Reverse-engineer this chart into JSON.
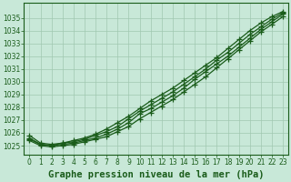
{
  "title": "Graphe pression niveau de la mer (hPa)",
  "xlabel_hours": [
    0,
    1,
    2,
    3,
    4,
    5,
    6,
    7,
    8,
    9,
    10,
    11,
    12,
    13,
    14,
    15,
    16,
    17,
    18,
    19,
    20,
    21,
    22,
    23
  ],
  "ylim": [
    1024.3,
    1036.2
  ],
  "xlim": [
    -0.5,
    23.5
  ],
  "yticks": [
    1025,
    1026,
    1027,
    1028,
    1029,
    1030,
    1031,
    1032,
    1033,
    1034,
    1035
  ],
  "bg_color": "#c8e8d8",
  "grid_color": "#a0c8b0",
  "line_color": "#1a5c1a",
  "series": [
    [
      1025.6,
      1025.1,
      1025.0,
      1025.1,
      1025.2,
      1025.4,
      1025.6,
      1025.9,
      1026.3,
      1026.8,
      1027.5,
      1027.9,
      1028.4,
      1028.9,
      1029.5,
      1030.2,
      1030.8,
      1031.4,
      1032.0,
      1032.7,
      1033.4,
      1034.1,
      1034.7,
      1035.3
    ],
    [
      1025.8,
      1025.2,
      1025.1,
      1025.2,
      1025.4,
      1025.6,
      1025.9,
      1026.3,
      1026.8,
      1027.3,
      1027.9,
      1028.5,
      1029.0,
      1029.5,
      1030.1,
      1030.7,
      1031.3,
      1031.9,
      1032.6,
      1033.3,
      1034.0,
      1034.6,
      1035.1,
      1035.5
    ],
    [
      1025.5,
      1025.1,
      1025.0,
      1025.2,
      1025.3,
      1025.5,
      1025.8,
      1026.1,
      1026.5,
      1027.1,
      1027.7,
      1028.2,
      1028.7,
      1029.2,
      1029.8,
      1030.4,
      1031.0,
      1031.7,
      1032.3,
      1033.0,
      1033.7,
      1034.3,
      1034.9,
      1035.4
    ],
    [
      1025.4,
      1025.0,
      1024.9,
      1025.0,
      1025.1,
      1025.3,
      1025.5,
      1025.7,
      1026.1,
      1026.5,
      1027.1,
      1027.6,
      1028.1,
      1028.6,
      1029.2,
      1029.8,
      1030.4,
      1031.1,
      1031.8,
      1032.5,
      1033.2,
      1033.9,
      1034.5,
      1035.1
    ]
  ],
  "marker": "+",
  "markersize": 4,
  "linewidth": 0.9,
  "title_fontsize": 7.5,
  "tick_fontsize": 5.5
}
